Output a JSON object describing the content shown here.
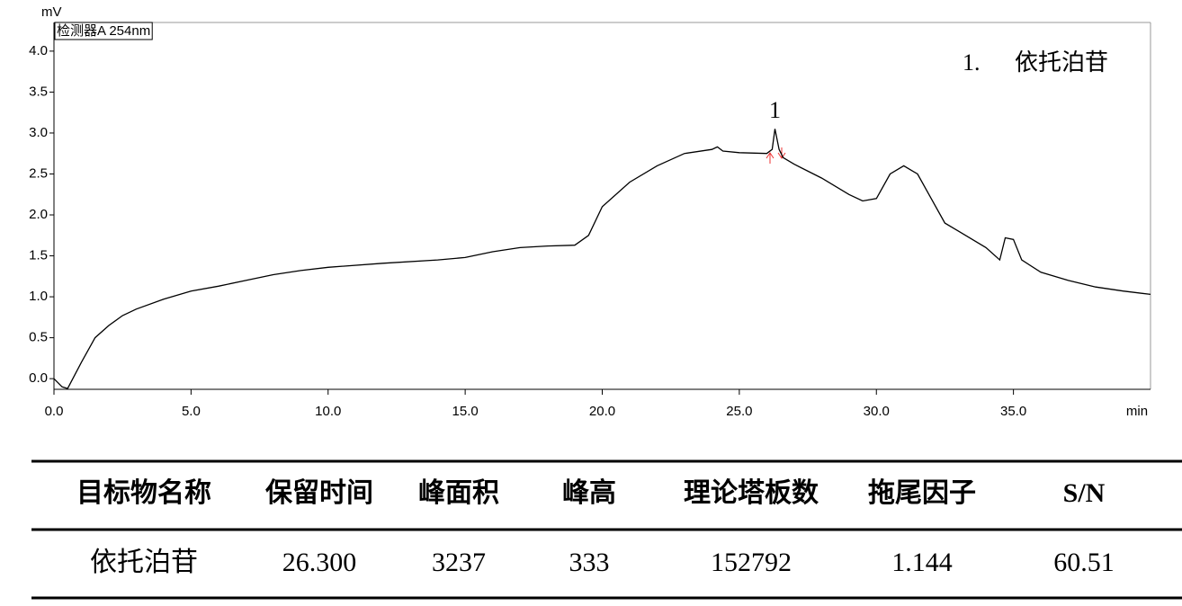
{
  "chart_data": {
    "type": "line",
    "y_label": "mV",
    "x_label": "min",
    "detector": "检测器A 254nm",
    "legend": {
      "number": "1.",
      "name": "依托泊苷"
    },
    "peaks": [
      {
        "label": "1",
        "x": 26.3
      }
    ],
    "color": "#000000",
    "x": [
      0,
      0.3,
      0.5,
      1.0,
      1.5,
      2.0,
      2.5,
      3.0,
      4.0,
      5.0,
      6.0,
      7.0,
      8.0,
      9.0,
      10.0,
      12.0,
      14.0,
      15.0,
      16.0,
      17.0,
      18.0,
      19.0,
      19.5,
      20.0,
      21.0,
      22.0,
      23.0,
      24.0,
      24.2,
      24.4,
      25.0,
      26.0,
      26.2,
      26.3,
      26.45,
      26.6,
      27.0,
      28.0,
      29.0,
      29.5,
      30.0,
      30.5,
      31.0,
      31.5,
      32.0,
      32.5,
      33.0,
      34.0,
      34.5,
      34.7,
      35.0,
      35.3,
      36.0,
      37.0,
      38.0,
      39.0,
      40.0
    ],
    "values": [
      0.0,
      -0.1,
      -0.12,
      0.2,
      0.5,
      0.65,
      0.77,
      0.85,
      0.97,
      1.07,
      1.13,
      1.2,
      1.27,
      1.32,
      1.36,
      1.41,
      1.45,
      1.48,
      1.55,
      1.6,
      1.62,
      1.63,
      1.75,
      2.1,
      2.4,
      2.6,
      2.75,
      2.8,
      2.83,
      2.78,
      2.76,
      2.75,
      2.8,
      3.05,
      2.8,
      2.7,
      2.62,
      2.45,
      2.25,
      2.17,
      2.2,
      2.5,
      2.6,
      2.5,
      2.2,
      1.9,
      1.8,
      1.6,
      1.45,
      1.72,
      1.7,
      1.45,
      1.3,
      1.2,
      1.12,
      1.07,
      1.03
    ],
    "xlim": [
      0,
      40
    ],
    "ylim": [
      -0.13,
      4.35
    ],
    "xticks": [
      {
        "value": 0,
        "label": "0.0"
      },
      {
        "value": 5,
        "label": "5.0"
      },
      {
        "value": 10,
        "label": "10.0"
      },
      {
        "value": 15,
        "label": "15.0"
      },
      {
        "value": 20,
        "label": "20.0"
      },
      {
        "value": 25,
        "label": "25.0"
      },
      {
        "value": 30,
        "label": "30.0"
      },
      {
        "value": 35,
        "label": "35.0"
      }
    ],
    "yticks": [
      {
        "value": 0,
        "label": "0.0"
      },
      {
        "value": 0.5,
        "label": "0.5"
      },
      {
        "value": 1,
        "label": "1.0"
      },
      {
        "value": 1.5,
        "label": "1.5"
      },
      {
        "value": 2,
        "label": "2.0"
      },
      {
        "value": 2.5,
        "label": "2.5"
      },
      {
        "value": 3,
        "label": "3.0"
      },
      {
        "value": 3.5,
        "label": "3.5"
      },
      {
        "value": 4,
        "label": "4.0"
      }
    ]
  },
  "table": {
    "header": [
      "目标物名称",
      "保留时间",
      "峰面积",
      "峰高",
      "理论塔板数",
      "拖尾因子",
      "S/N"
    ],
    "rows": [
      [
        "依托泊苷",
        "26.300",
        "3237",
        "333",
        "152792",
        "1.144",
        "60.51"
      ]
    ]
  }
}
